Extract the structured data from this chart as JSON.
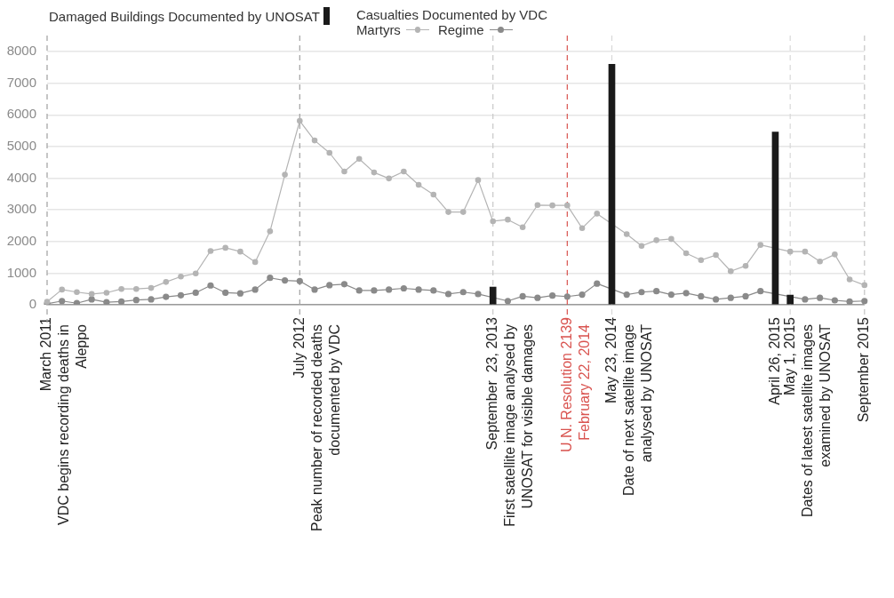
{
  "chart_data": {
    "type": "line",
    "legend_title": "Casualties Documented by VDC",
    "categories": [
      "March 2011",
      null,
      null,
      null,
      null,
      null,
      null,
      null,
      null,
      null,
      null,
      null,
      null,
      null,
      null,
      null,
      null,
      "July 2012",
      null,
      null,
      null,
      null,
      null,
      null,
      null,
      null,
      null,
      null,
      null,
      null,
      "September  23, 2013",
      null,
      null,
      null,
      null,
      "U.N. Resolution 2139",
      null,
      null,
      "May 23, 2014",
      null,
      null,
      null,
      null,
      null,
      null,
      null,
      null,
      null,
      null,
      "April 26, 2015",
      "May 1, 2015",
      null,
      null,
      null,
      null,
      "September 2015"
    ],
    "ylim": [
      0,
      8000
    ],
    "yticks": [
      0,
      1000,
      2000,
      3000,
      4000,
      5000,
      6000,
      7000,
      8000
    ],
    "grid": "y",
    "legend": "top",
    "marker": "circle",
    "series": [
      {
        "name": "Damaged Buildings Documented by UNOSAT",
        "type": "bar",
        "color": "#1a1a1a",
        "values": [
          null,
          null,
          null,
          null,
          null,
          null,
          null,
          null,
          null,
          null,
          null,
          null,
          null,
          null,
          null,
          null,
          null,
          null,
          null,
          null,
          null,
          null,
          null,
          null,
          null,
          null,
          null,
          null,
          null,
          null,
          560,
          null,
          null,
          null,
          null,
          null,
          null,
          null,
          7600,
          null,
          null,
          null,
          null,
          null,
          null,
          null,
          null,
          null,
          null,
          5460,
          310,
          null,
          null,
          null,
          null,
          null
        ]
      },
      {
        "name": "Martyrs",
        "color": "#b4b4b4",
        "values": [
          100,
          480,
          400,
          340,
          380,
          500,
          500,
          530,
          720,
          890,
          990,
          1700,
          1800,
          1680,
          1350,
          2320,
          4110,
          5810,
          5190,
          4800,
          4210,
          4610,
          4180,
          3990,
          4210,
          3790,
          3480,
          2930,
          2930,
          3940,
          2640,
          2690,
          2450,
          3150,
          3140,
          3140,
          2420,
          2880,
          null,
          2230,
          1860,
          2040,
          2080,
          1630,
          1410,
          1570,
          1060,
          1230,
          1890,
          null,
          1680,
          1680,
          1370,
          1590,
          800,
          620
        ]
      },
      {
        "name": "Regime",
        "color": "#8a8a8a",
        "values": [
          30,
          120,
          50,
          170,
          80,
          100,
          150,
          170,
          250,
          300,
          380,
          610,
          380,
          360,
          480,
          850,
          770,
          750,
          480,
          620,
          650,
          450,
          450,
          480,
          520,
          480,
          450,
          340,
          400,
          340,
          null,
          120,
          270,
          220,
          290,
          260,
          320,
          670,
          null,
          320,
          400,
          430,
          320,
          370,
          270,
          170,
          220,
          270,
          430,
          null,
          null,
          170,
          220,
          140,
          100,
          120
        ]
      }
    ],
    "ref_lines": [
      {
        "axis": "x",
        "value": "March 2011",
        "label": "VDC begins recording deaths in\nAleppo",
        "color": "#a0a0a0",
        "line_style": "dashed"
      },
      {
        "axis": "x",
        "value": "July 2012",
        "label": "Peak number of recorded deaths\ndocumented by VDC",
        "color": "#a0a0a0",
        "line_style": "dashed"
      },
      {
        "axis": "x",
        "value": "September  23, 2013",
        "label": "First satellite image analysed by\nUNOSAT for visible damages",
        "color": "#c8c8c8",
        "line_style": "dashed"
      },
      {
        "axis": "x",
        "value": "U.N. Resolution 2139",
        "label": "February 22, 2014",
        "color": "#d9534f",
        "line_style": "dashed"
      },
      {
        "axis": "x",
        "value": "May 23, 2014",
        "label": "Date of next satellite image\nanalysed by UNOSAT",
        "color": "#d8d8d8",
        "line_style": "dashed"
      },
      {
        "axis": "x",
        "value": "May 1, 2015",
        "label": "Dates of latest satellite images\nexamined by UNOSAT",
        "color": "#d8d8d8",
        "line_style": "dashed"
      },
      {
        "axis": "x",
        "value": "September 2015",
        "color": "#c4c4c4",
        "line_style": "dashed"
      }
    ]
  }
}
